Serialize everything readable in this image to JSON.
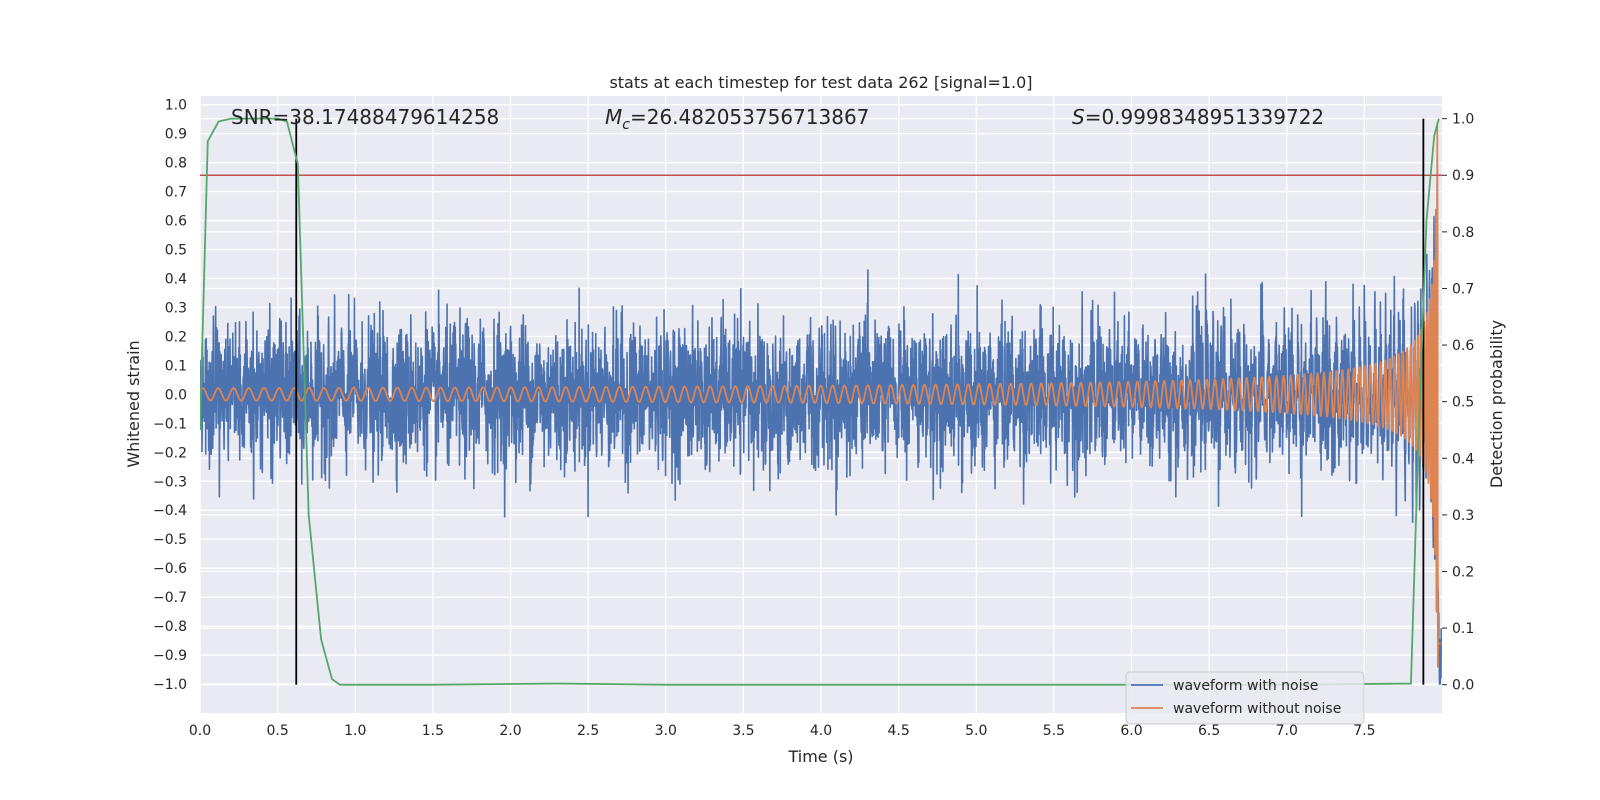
{
  "chart_data": {
    "type": "line",
    "title": "stats at each timestep for test data 262 [signal=1.0]",
    "xlabel": "Time (s)",
    "ylabel": "Whitened strain",
    "y2label": "Detection probability",
    "xlim": [
      0.0,
      8.0
    ],
    "ylim": [
      -1.1,
      1.03
    ],
    "y2lim": [
      -0.05,
      1.04
    ],
    "x_ticks": [
      0.0,
      0.5,
      1.0,
      1.5,
      2.0,
      2.5,
      3.0,
      3.5,
      4.0,
      4.5,
      5.0,
      5.5,
      6.0,
      6.5,
      7.0,
      7.5
    ],
    "x_tick_labels": [
      "0.0",
      "0.5",
      "1.0",
      "1.5",
      "2.0",
      "2.5",
      "3.0",
      "3.5",
      "4.0",
      "4.5",
      "5.0",
      "5.5",
      "6.0",
      "6.5",
      "7.0",
      "7.5"
    ],
    "y_ticks": [
      -1.0,
      -0.9,
      -0.8,
      -0.7,
      -0.6,
      -0.5,
      -0.4,
      -0.3,
      -0.2,
      -0.1,
      0.0,
      0.1,
      0.2,
      0.3,
      0.4,
      0.5,
      0.6,
      0.7,
      0.8,
      0.9,
      1.0
    ],
    "y_tick_labels": [
      "−1.0",
      "−0.9",
      "−0.8",
      "−0.7",
      "−0.6",
      "−0.5",
      "−0.4",
      "−0.3",
      "−0.2",
      "−0.1",
      "0.0",
      "0.1",
      "0.2",
      "0.3",
      "0.4",
      "0.5",
      "0.6",
      "0.7",
      "0.8",
      "0.9",
      "1.0"
    ],
    "y2_ticks": [
      0.0,
      0.1,
      0.2,
      0.3,
      0.4,
      0.5,
      0.6,
      0.7,
      0.8,
      0.9,
      1.0
    ],
    "y2_tick_labels": [
      "0.0",
      "0.1",
      "0.2",
      "0.3",
      "0.4",
      "0.5",
      "0.6",
      "0.7",
      "0.8",
      "0.9",
      "1.0"
    ],
    "grid": true,
    "legend_position": "lower-right",
    "annotations": [
      {
        "id": "snr",
        "text": "SNR=38.17488479614258",
        "x": 0.19
      },
      {
        "id": "mc",
        "text": "Mc=26.482053756713867",
        "symbol": "M",
        "subscript": "c",
        "rest": "=26.482053756713867",
        "x": 2.6
      },
      {
        "id": "s",
        "text": "S=0.9998348951339722",
        "symbol": "S",
        "rest": "=0.9998348951339722",
        "x": 5.6
      }
    ],
    "threshold_line": {
      "axis": "y2",
      "value": 0.9,
      "color": "#c44e52"
    },
    "vertical_lines": [
      {
        "x": 0.62,
        "y2_from": 0.0,
        "y2_to": 1.0,
        "color": "#000000"
      },
      {
        "x": 7.88,
        "y2_from": 0.0,
        "y2_to": 1.0,
        "color": "#000000"
      }
    ],
    "series": [
      {
        "name": "waveform with noise",
        "axis": "y",
        "color": "#4c72b0",
        "kind": "noise",
        "envelope": 0.27,
        "peak_time": 7.98
      },
      {
        "name": "waveform without noise",
        "axis": "y",
        "color": "#dd8452",
        "kind": "chirp",
        "peak_time": 7.98,
        "peak_amplitude": 0.95
      },
      {
        "name": "detection probability",
        "axis": "y2",
        "color": "#55a868",
        "kind": "probability",
        "x": [
          0.0,
          0.05,
          0.12,
          0.2,
          0.3,
          0.4,
          0.5,
          0.56,
          0.63,
          0.7,
          0.78,
          0.85,
          0.9,
          1.5,
          2.3,
          3.0,
          5.0,
          7.0,
          7.8,
          7.85,
          7.9,
          7.95,
          7.98
        ],
        "y": [
          0.45,
          0.96,
          0.995,
          1.0,
          1.0,
          1.0,
          1.0,
          0.995,
          0.92,
          0.3,
          0.08,
          0.01,
          0.0,
          0.0,
          0.002,
          0.0,
          0.0,
          0.0,
          0.002,
          0.45,
          0.82,
          0.97,
          1.0
        ]
      }
    ]
  },
  "colors": {
    "plot_background": "#eaeaf2",
    "grid": "#ffffff",
    "text": "#262626"
  }
}
